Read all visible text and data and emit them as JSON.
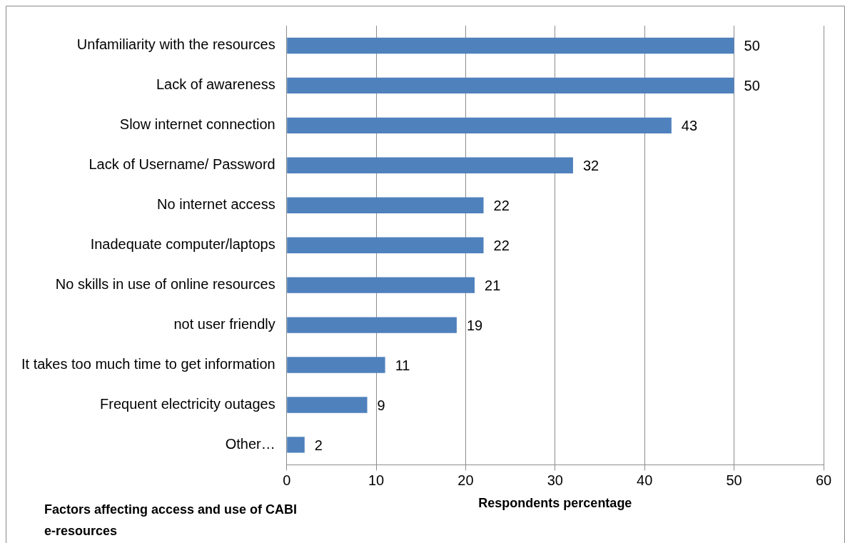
{
  "chart_data": {
    "type": "bar",
    "orientation": "horizontal",
    "categories": [
      "Unfamiliarity with the resources",
      "Lack of awareness",
      "Slow internet connection",
      "Lack of Username/ Password",
      "No internet access",
      "Inadequate computer/laptops",
      "No skills in use of online resources",
      "not user friendly",
      "It takes too much time to get information",
      "Frequent electricity outages",
      "Other…"
    ],
    "values": [
      50,
      50,
      43,
      32,
      22,
      22,
      21,
      19,
      11,
      9,
      2
    ],
    "color": "#4f81bd",
    "xlim": [
      0,
      60
    ],
    "xticks": [
      0,
      10,
      20,
      30,
      40,
      50,
      60
    ],
    "xlabel": "Respondents percentage",
    "ylabel": "Factors affecting access and use of CABI e-resources",
    "grid": "x",
    "legend": false,
    "data_labels": true
  }
}
